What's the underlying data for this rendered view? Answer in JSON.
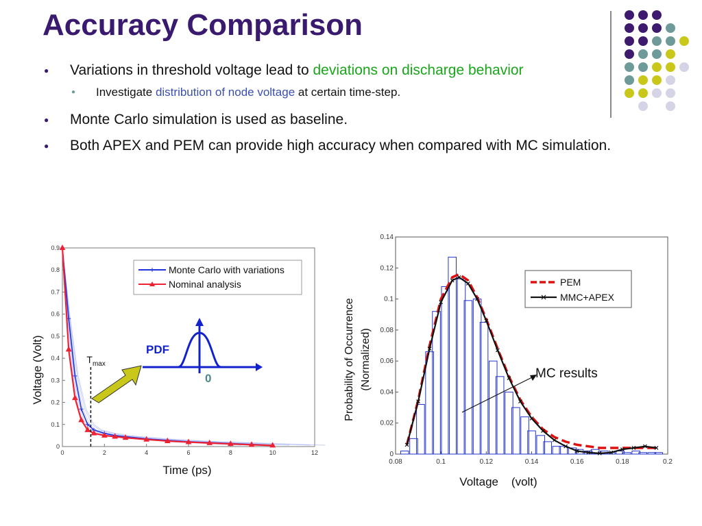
{
  "slide": {
    "title": "Accuracy Comparison",
    "bullets": [
      {
        "level": 1,
        "parts": [
          {
            "text": "Variations in threshold voltage lead to ",
            "style": ""
          },
          {
            "text": "deviations on discharge behavior",
            "style": "green"
          }
        ]
      },
      {
        "level": 2,
        "parts": [
          {
            "text": "Investigate ",
            "style": ""
          },
          {
            "text": "distribution of node voltage",
            "style": "blue"
          },
          {
            "text": " at certain time-step.",
            "style": ""
          }
        ]
      },
      {
        "level": 1,
        "parts": [
          {
            "text": "Monte Carlo simulation is used as baseline.",
            "style": ""
          }
        ]
      },
      {
        "level": 1,
        "parts": [
          {
            "text": "Both APEX and PEM can provide high accuracy when compared with MC simulation.",
            "style": ""
          }
        ]
      }
    ],
    "decor_colors": {
      "purple": "#3e1a6e",
      "teal": "#6f9a9a",
      "yellow": "#c9c81a",
      "lavender": "#d4d4e6"
    }
  },
  "chart_data": [
    {
      "type": "line",
      "xlabel": "Time (ps)",
      "ylabel": "Voltage (Volt)",
      "xlim": [
        0,
        12
      ],
      "ylim": [
        0,
        0.9
      ],
      "xticks": [
        "0",
        "2",
        "4",
        "6",
        "8",
        "10",
        "12"
      ],
      "yticks": [
        "0",
        "0.1",
        "0.2",
        "0.3",
        "0.4",
        "0.5",
        "0.6",
        "0.7",
        "0.8",
        "0.9"
      ],
      "legend_position": "top-right",
      "series": [
        {
          "name": "Monte Carlo with variations",
          "color": "#2233dd",
          "x": [
            0,
            0.3,
            0.6,
            0.9,
            1.2,
            1.5,
            2,
            2.5,
            3,
            4,
            5,
            6,
            7,
            8,
            9,
            10
          ],
          "y": [
            0.9,
            0.58,
            0.32,
            0.17,
            0.1,
            0.075,
            0.06,
            0.05,
            0.045,
            0.035,
            0.028,
            0.022,
            0.018,
            0.014,
            0.01,
            0.006
          ]
        },
        {
          "name": "Nominal analysis",
          "color": "#ee2233",
          "x": [
            0,
            0.3,
            0.6,
            0.9,
            1.2,
            1.5,
            2,
            2.5,
            3,
            4,
            5,
            6,
            7,
            8,
            9,
            10
          ],
          "y": [
            0.9,
            0.44,
            0.22,
            0.12,
            0.075,
            0.06,
            0.05,
            0.045,
            0.04,
            0.032,
            0.025,
            0.02,
            0.016,
            0.012,
            0.008,
            0.005
          ]
        }
      ],
      "annotations": {
        "tmax": "T",
        "tmax_sub": "max",
        "tmax_x": 1.35,
        "pdf_label": "PDF",
        "zero_label": "0"
      }
    },
    {
      "type": "bar",
      "xlabel": "Voltage    (volt)",
      "ylabel": "Probability of Occurrence",
      "ylabel2": "(Normalized)",
      "xlim": [
        0.08,
        0.2
      ],
      "ylim": [
        0,
        0.14
      ],
      "xticks": [
        "0.08",
        "0.1",
        "0.12",
        "0.14",
        "0.16",
        "0.18",
        "0.2"
      ],
      "yticks": [
        "0",
        "0.02",
        "0.04",
        "0.06",
        "0.08",
        "0.1",
        "0.12",
        "0.14"
      ],
      "legend_position": "top-right",
      "bins": {
        "width": 0.0035,
        "centers": [
          0.084,
          0.088,
          0.091,
          0.095,
          0.098,
          0.102,
          0.105,
          0.109,
          0.112,
          0.116,
          0.119,
          0.123,
          0.126,
          0.13,
          0.133,
          0.137,
          0.14,
          0.144,
          0.147,
          0.151,
          0.154,
          0.158,
          0.161,
          0.165,
          0.168,
          0.172,
          0.175,
          0.179,
          0.182,
          0.186,
          0.189,
          0.193,
          0.196
        ],
        "values": [
          0.002,
          0.01,
          0.032,
          0.066,
          0.092,
          0.108,
          0.127,
          0.113,
          0.099,
          0.1,
          0.085,
          0.06,
          0.05,
          0.04,
          0.03,
          0.024,
          0.015,
          0.012,
          0.008,
          0.005,
          0.005,
          0.004,
          0.003,
          0.002,
          0.003,
          0.002,
          0.001,
          0.002,
          0.001,
          0.002,
          0.001,
          0.001,
          0.001
        ]
      },
      "series": [
        {
          "name": "PEM",
          "color": "#dd1111",
          "dash": true,
          "x": [
            0.085,
            0.09,
            0.095,
            0.1,
            0.105,
            0.108,
            0.112,
            0.116,
            0.12,
            0.125,
            0.13,
            0.135,
            0.14,
            0.145,
            0.15,
            0.155,
            0.16,
            0.165,
            0.17,
            0.175,
            0.18,
            0.185,
            0.19,
            0.195
          ],
          "y": [
            0.006,
            0.035,
            0.07,
            0.1,
            0.114,
            0.116,
            0.112,
            0.101,
            0.087,
            0.068,
            0.05,
            0.035,
            0.024,
            0.016,
            0.011,
            0.008,
            0.006,
            0.005,
            0.004,
            0.004,
            0.004,
            0.004,
            0.004,
            0.004
          ]
        },
        {
          "name": "MMC+APEX",
          "color": "#111111",
          "dash": false,
          "x": [
            0.085,
            0.09,
            0.095,
            0.1,
            0.105,
            0.108,
            0.112,
            0.116,
            0.12,
            0.125,
            0.13,
            0.135,
            0.14,
            0.145,
            0.15,
            0.155,
            0.16,
            0.165,
            0.17,
            0.175,
            0.18,
            0.185,
            0.19,
            0.195
          ],
          "y": [
            0.006,
            0.034,
            0.068,
            0.098,
            0.112,
            0.114,
            0.11,
            0.1,
            0.086,
            0.067,
            0.049,
            0.034,
            0.023,
            0.015,
            0.009,
            0.005,
            0.002,
            0.001,
            0.0005,
            0.001,
            0.003,
            0.004,
            0.005,
            0.004
          ]
        }
      ],
      "annotations": {
        "mc_label": "MC results"
      }
    }
  ]
}
